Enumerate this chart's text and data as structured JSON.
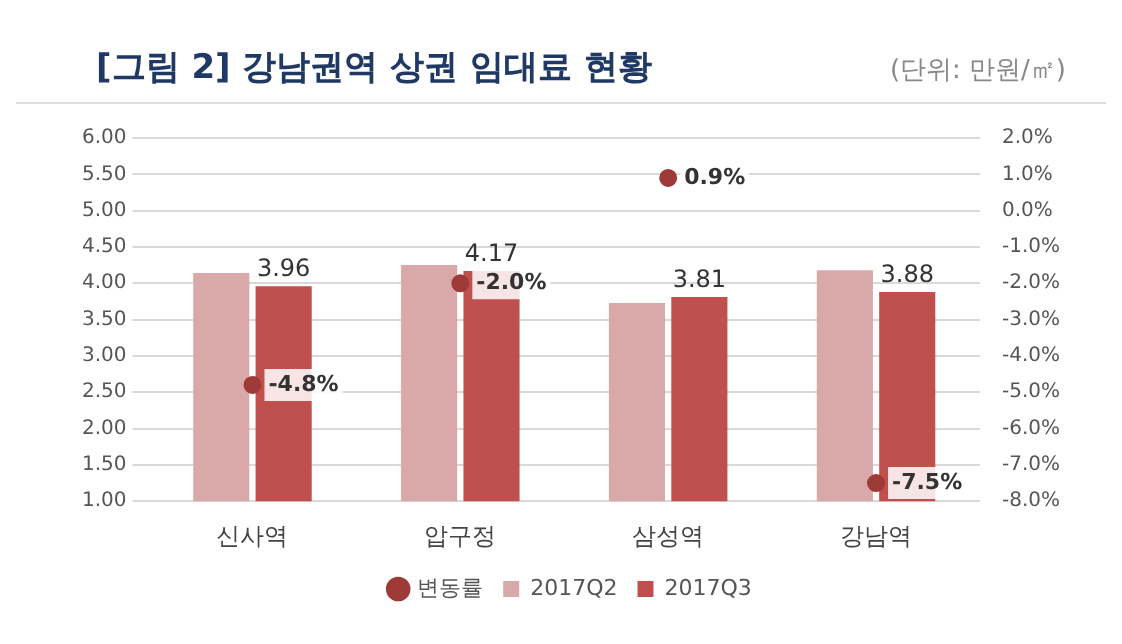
{
  "chart_data": {
    "type": "bar",
    "title": "[그림 2] 강남권역 상권 임대료 현황",
    "subtitle": "(단위: 만원/㎡)",
    "categories": [
      "신사역",
      "압구정",
      "삼성역",
      "강남역"
    ],
    "series": [
      {
        "name": "2017Q2",
        "color": "#d9a9a9",
        "values": [
          4.14,
          4.25,
          3.73,
          4.18
        ]
      },
      {
        "name": "2017Q3",
        "color": "#c0504d",
        "values": [
          3.96,
          4.17,
          3.81,
          3.88
        ],
        "value_labels": [
          "3.96",
          "4.17",
          "3.81",
          "3.88"
        ]
      },
      {
        "name": "변동률",
        "type": "scatter",
        "axis": "y2",
        "color": "#9e3a38",
        "values": [
          -4.8,
          -2.0,
          0.9,
          -7.5
        ],
        "value_labels": [
          "-4.8%",
          "-2.0%",
          "0.9%",
          "-7.5%"
        ]
      }
    ],
    "ylim": [
      1,
      6
    ],
    "yticks": [
      {
        "value": 1,
        "label": "1.00"
      },
      {
        "value": 1.5,
        "label": "1.50"
      },
      {
        "value": 2,
        "label": "2.00"
      },
      {
        "value": 2.5,
        "label": "2.50"
      },
      {
        "value": 3,
        "label": "3.00"
      },
      {
        "value": 3.5,
        "label": "3.50"
      },
      {
        "value": 4,
        "label": "4.00"
      },
      {
        "value": 4.5,
        "label": "4.50"
      },
      {
        "value": 5,
        "label": "5.00"
      },
      {
        "value": 5.5,
        "label": "5.50"
      },
      {
        "value": 6,
        "label": "6.00"
      }
    ],
    "y2lim": [
      -8,
      2
    ],
    "y2ticks": [
      {
        "value": -8,
        "label": "-8.0%"
      },
      {
        "value": -7,
        "label": "-7.0%"
      },
      {
        "value": -6,
        "label": "-6.0%"
      },
      {
        "value": -5,
        "label": "-5.0%"
      },
      {
        "value": -4,
        "label": "-4.0%"
      },
      {
        "value": -3,
        "label": "-3.0%"
      },
      {
        "value": -2,
        "label": "-2.0%"
      },
      {
        "value": -1,
        "label": "-1.0%"
      },
      {
        "value": 0,
        "label": "0.0%"
      },
      {
        "value": 1,
        "label": "1.0%"
      },
      {
        "value": 2,
        "label": "2.0%"
      }
    ],
    "grid": "y",
    "legend": "bottom",
    "marker": "circle"
  }
}
